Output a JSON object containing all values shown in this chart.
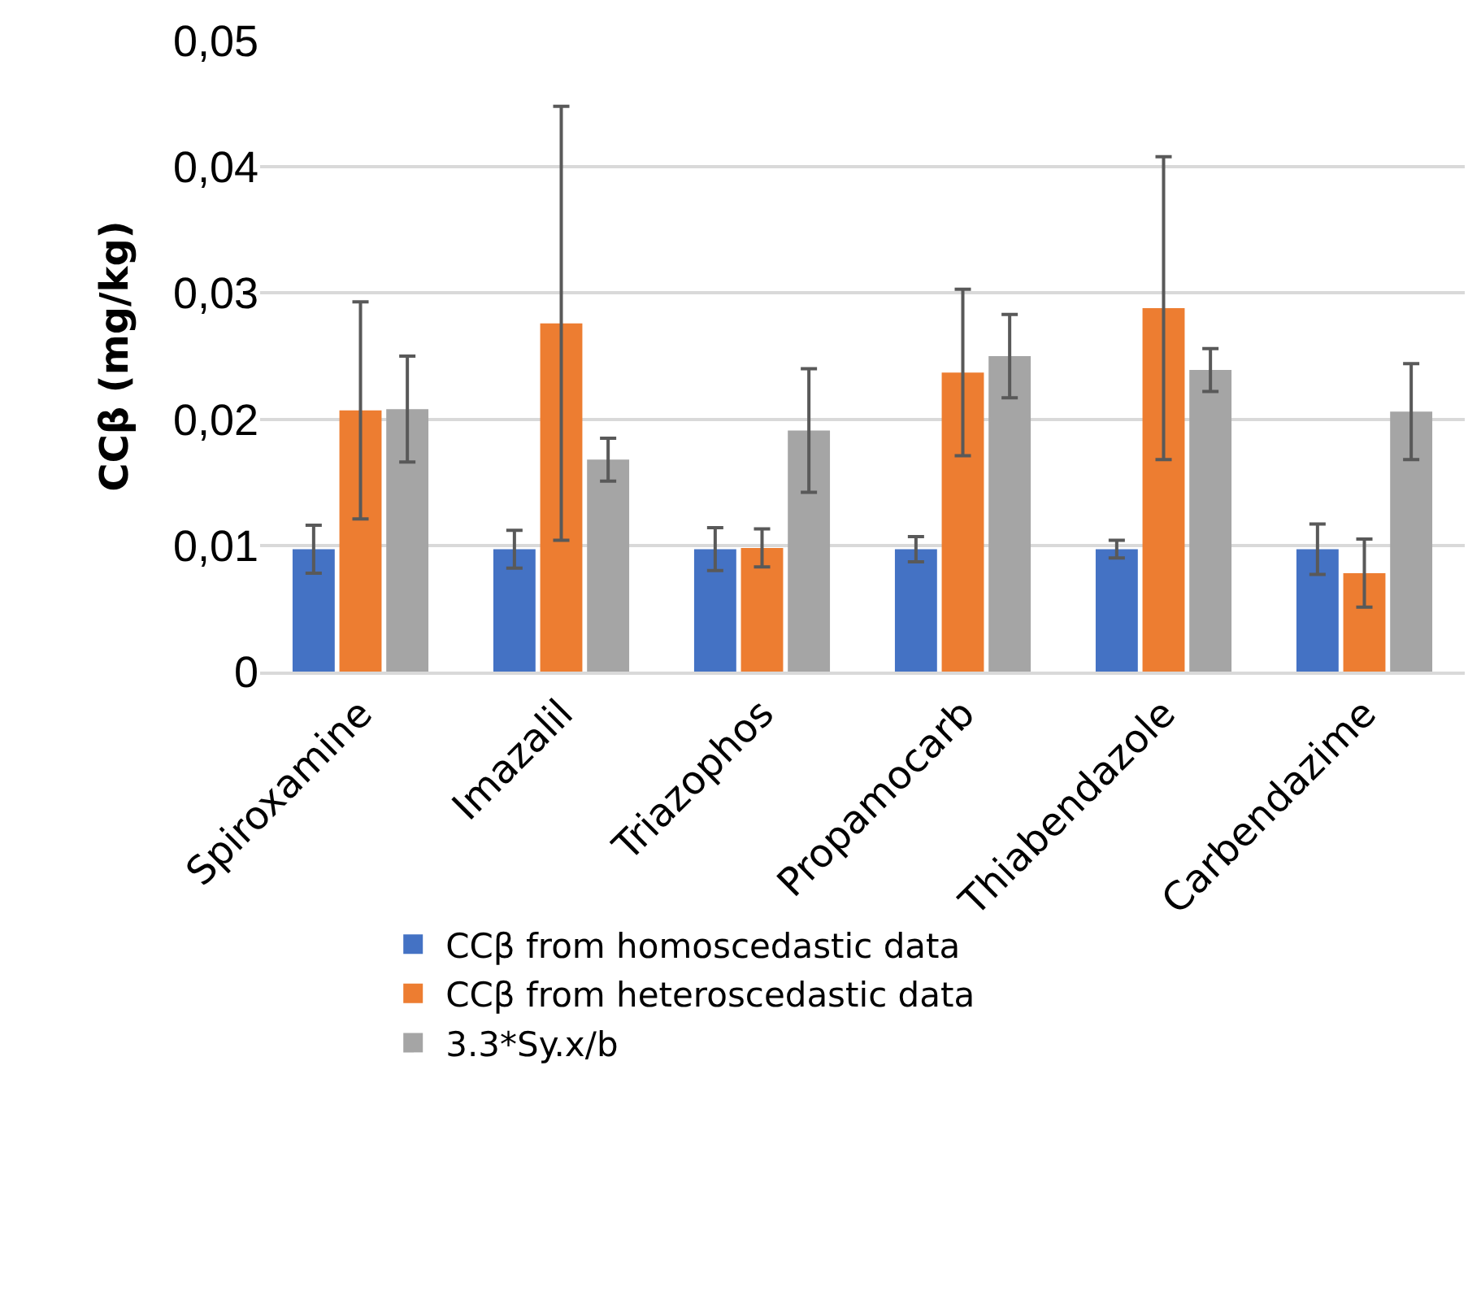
{
  "chart_data": {
    "type": "bar",
    "ylabel": "CCβ (mg/kg)",
    "categories": [
      "Spiroxamine",
      "Imazalil",
      "Triazophos",
      "Propamocarb",
      "Thiabendazole",
      "Carbendazime"
    ],
    "series": [
      {
        "name": "CCβ from homoscedastic data",
        "color": "#4472c4",
        "values": [
          0.0097,
          0.0097,
          0.0097,
          0.0097,
          0.0097,
          0.0097
        ],
        "errors": [
          0.0019,
          0.0015,
          0.0017,
          0.001,
          0.0007,
          0.002
        ]
      },
      {
        "name": "CCβ from heteroscedastic data",
        "color": "#ed7d31",
        "values": [
          0.0207,
          0.0276,
          0.0098,
          0.0237,
          0.0288,
          0.0078
        ],
        "errors": [
          0.0086,
          0.0172,
          0.0015,
          0.0066,
          0.012,
          0.0027
        ]
      },
      {
        "name": "3.3*Sy.x/b",
        "color": "#a5a5a5",
        "values": [
          0.0208,
          0.0168,
          0.0191,
          0.025,
          0.0239,
          0.0206
        ],
        "errors": [
          0.0042,
          0.0017,
          0.0049,
          0.0033,
          0.0017,
          0.0038
        ]
      }
    ],
    "ylim": [
      0,
      0.05
    ],
    "yticks": [
      {
        "value": 0,
        "label": "0"
      },
      {
        "value": 0.01,
        "label": "0,01"
      },
      {
        "value": 0.02,
        "label": "0,02"
      },
      {
        "value": 0.03,
        "label": "0,03"
      },
      {
        "value": 0.04,
        "label": "0,04"
      },
      {
        "value": 0.05,
        "label": "0,05"
      }
    ],
    "grid": "y",
    "legend": "bottom"
  }
}
